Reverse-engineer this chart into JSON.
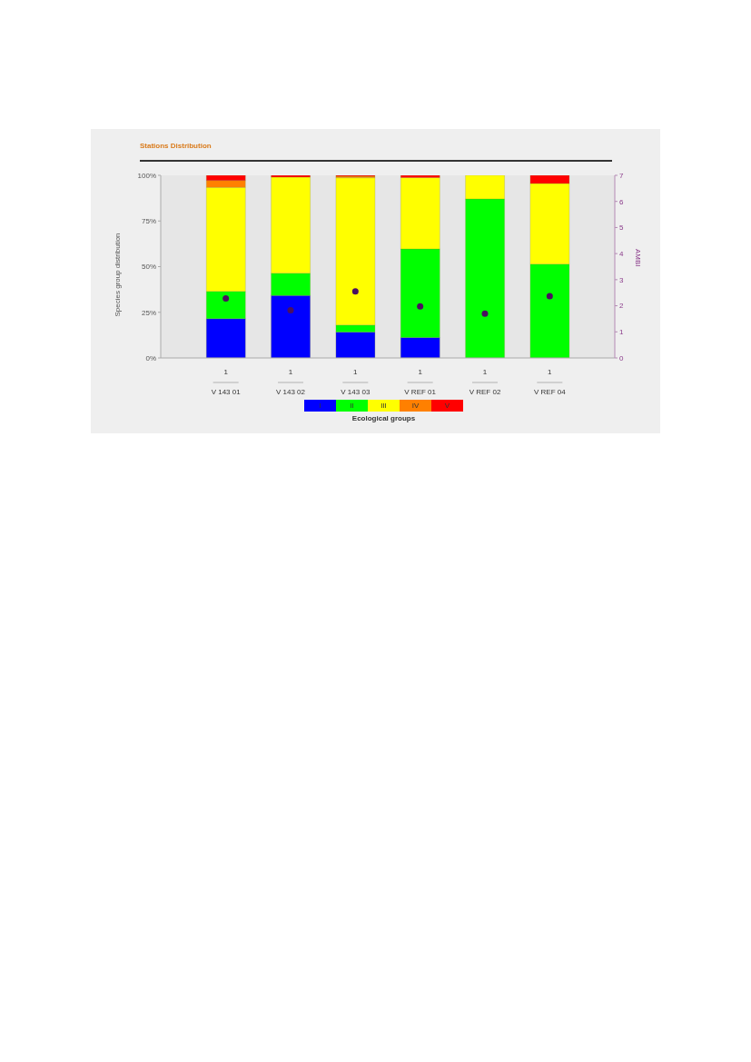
{
  "chart_data": {
    "type": "bar",
    "title": "Stations Distribution",
    "ylabel": "Species group distribution",
    "y2label": "AMBI",
    "legend_title": "Ecological groups",
    "categories": [
      "V 143 01",
      "V 143 02",
      "V 143 03",
      "V REF 01",
      "V REF 02",
      "V REF 04"
    ],
    "stacked": true,
    "series": [
      {
        "name": "I",
        "color": "#0000ff",
        "values": [
          21.5,
          34.2,
          14.2,
          11.2,
          0,
          0
        ]
      },
      {
        "name": "II",
        "color": "#00ff00",
        "values": [
          15.0,
          12.2,
          3.8,
          48.5,
          87.1,
          51.4
        ]
      },
      {
        "name": "III",
        "color": "#ffff00",
        "values": [
          56.9,
          52.6,
          80.7,
          39.1,
          12.9,
          44.1
        ]
      },
      {
        "name": "IV",
        "color": "#ff8000",
        "values": [
          3.8,
          0,
          0.8,
          0,
          0,
          0
        ]
      },
      {
        "name": "V",
        "color": "#ff0000",
        "values": [
          2.8,
          1.0,
          0.5,
          1.2,
          0,
          4.5
        ]
      },
      {
        "type": "scatter",
        "axis": "y2",
        "color": "#4b1060",
        "marker": "circle",
        "values": [
          2.28,
          1.83,
          2.55,
          1.98,
          1.7,
          2.37
        ]
      }
    ],
    "ylim": [
      0,
      100
    ],
    "yticks": [
      {
        "value": 0,
        "label": "0%"
      },
      {
        "value": 25,
        "label": "25%"
      },
      {
        "value": 50,
        "label": "50%"
      },
      {
        "value": 75,
        "label": "75%"
      },
      {
        "value": 100,
        "label": "100%"
      }
    ],
    "y2lim": [
      0,
      7
    ],
    "y2ticks": [
      0,
      1,
      2,
      3,
      4,
      5,
      6,
      7
    ],
    "annotations": [
      "1",
      "1",
      "1",
      "1",
      "1",
      "1"
    ],
    "legend": "bottom",
    "grid": false
  }
}
